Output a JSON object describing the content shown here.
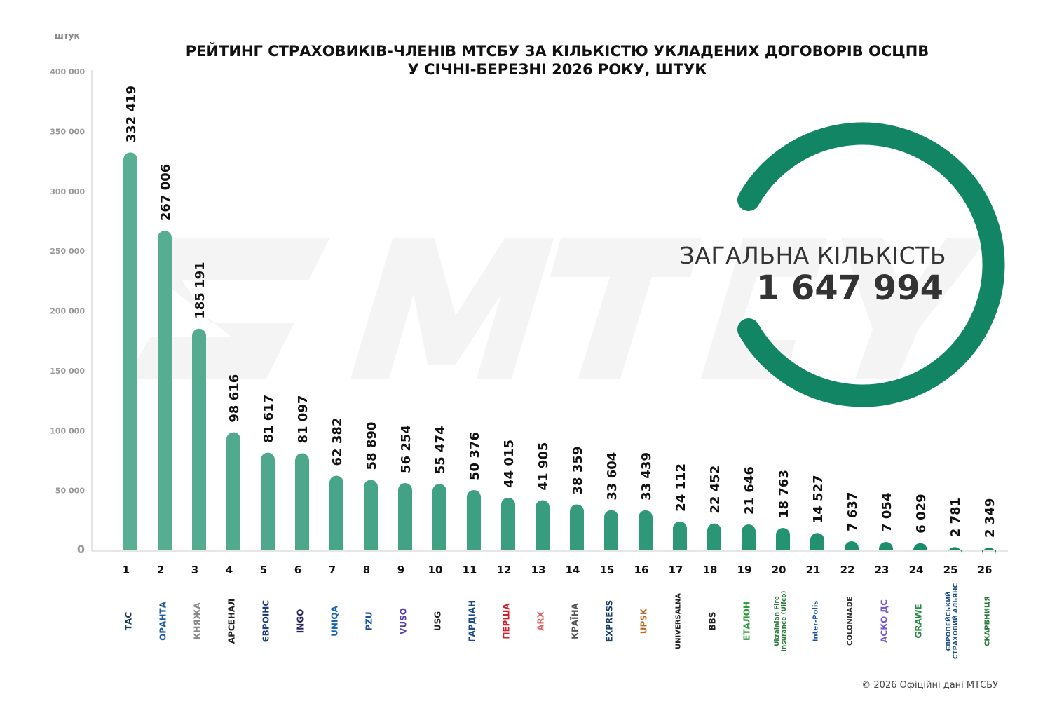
{
  "title_line1": "РЕЙТИНГ СТРАХОВИКІВ-ЧЛЕНІВ МТСБУ ЗА КІЛЬКІСТЮ УКЛАДЕНИХ ДОГОВОРІВ ОСЦПВ",
  "title_line2": "У СІЧНІ-БЕРЕЗНІ 2026 РОКУ, ШТУК",
  "unit": "штук",
  "total_label": "ЗАГАЛЬНА КІЛЬКІСТЬ",
  "total_value": "1 647 994",
  "footer": "© 2026 Офіційні дані МТСБУ",
  "watermark": "МТСБУ",
  "colors": {
    "bar_light": "#5aae94",
    "bar_dark": "#138a66",
    "ring": "#128664"
  },
  "chart_data": {
    "type": "bar",
    "title": "РЕЙТИНГ СТРАХОВИКІВ-ЧЛЕНІВ МТСБУ ЗА КІЛЬКІСТЮ УКЛАДЕНИХ ДОГОВОРІВ ОСЦПВ У СІЧНІ-БЕРЕЗНІ 2026 РОКУ, ШТУК",
    "ylabel": "штук",
    "ylim": [
      0,
      400000
    ],
    "yticks": [
      0,
      50000,
      100000,
      150000,
      200000,
      250000,
      300000,
      350000,
      400000
    ],
    "ytick_labels": [
      "0",
      "50 000",
      "100 000",
      "150 000",
      "200 000",
      "250 000",
      "300 000",
      "350 000",
      "400 000"
    ],
    "grid": false,
    "categories": [
      "1",
      "2",
      "3",
      "4",
      "5",
      "6",
      "7",
      "8",
      "9",
      "10",
      "11",
      "12",
      "13",
      "14",
      "15",
      "16",
      "17",
      "18",
      "19",
      "20",
      "21",
      "22",
      "23",
      "24",
      "25",
      "26"
    ],
    "companies": [
      "ТАС",
      "ОРАНТА",
      "КНЯЖА",
      "АРСЕНАЛ",
      "ЄВРОІНС",
      "INGO",
      "UNIQA",
      "PZU",
      "VUSO",
      "USG",
      "ГАРДІАН",
      "ПЕРША",
      "ARX",
      "КРАЇНА",
      "EXPRESS",
      "UPSK",
      "UNIVERSALNA",
      "BBS",
      "ЕТАЛОН",
      "Ukrainian Fire Insurance (Uifco)",
      "Inter-Polis",
      "COLONNADE",
      "АСКО ДС",
      "GRAWE",
      "ЄВРОПЕЙСЬКИЙ СТРАХОВИЙ АЛЬЯНС",
      "СКАРБНИЦЯ"
    ],
    "logo_colors": [
      "#1b3a5c",
      "#1d5aa6",
      "#888888",
      "#222222",
      "#1d3d7a",
      "#2a2a5a",
      "#1a64b0",
      "#1a4f9c",
      "#5a3fb0",
      "#222222",
      "#1d4a8a",
      "#d21f2b",
      "#e06060",
      "#555555",
      "#1d3d6a",
      "#b86a2a",
      "#222222",
      "#222222",
      "#2a9a3a",
      "#2a7a3a",
      "#1a4fa0",
      "#333333",
      "#7a5ad0",
      "#2a8a4a",
      "#1a4f8a",
      "#2a7a3a"
    ],
    "values": [
      332419,
      267006,
      185191,
      98616,
      81617,
      81097,
      62382,
      58890,
      56254,
      55474,
      50376,
      44015,
      41905,
      38359,
      33604,
      33439,
      24112,
      22452,
      21646,
      18763,
      14527,
      7637,
      7054,
      6029,
      2781,
      2349
    ],
    "value_labels": [
      "332 419",
      "267 006",
      "185 191",
      "98 616",
      "81 617",
      "81 097",
      "62 382",
      "58 890",
      "56 254",
      "55 474",
      "50 376",
      "44 015",
      "41 905",
      "38 359",
      "33 604",
      "33 439",
      "24 112",
      "22 452",
      "21 646",
      "18 763",
      "14 527",
      "7 637",
      "7 054",
      "6 029",
      "2 781",
      "2 349"
    ]
  }
}
